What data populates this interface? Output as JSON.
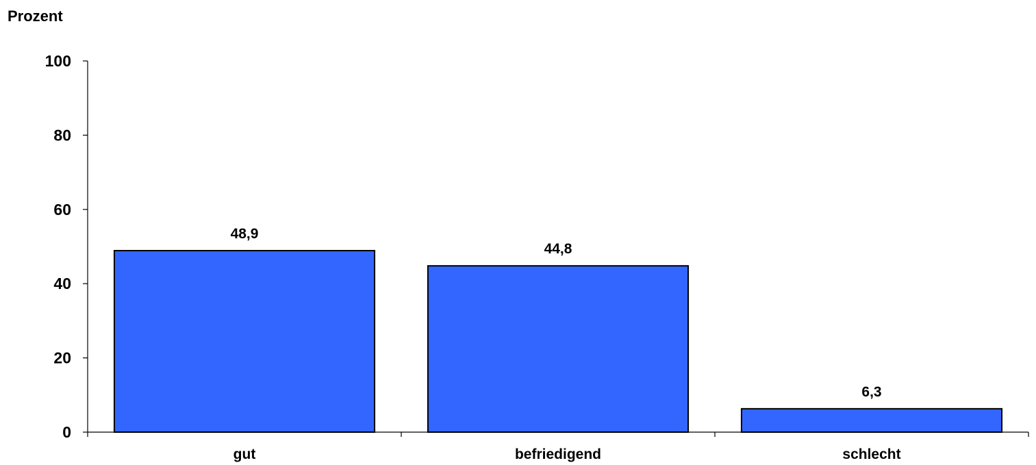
{
  "chart_data": {
    "type": "bar",
    "title": "",
    "xlabel": "",
    "ylabel": "Prozent",
    "categories": [
      "gut",
      "befriedigend",
      "schlecht"
    ],
    "values": [
      48.9,
      44.8,
      6.3
    ],
    "value_labels": [
      "48,9",
      "44,8",
      "6,3"
    ],
    "ylim": [
      0,
      100
    ],
    "yticks": [
      0,
      20,
      40,
      60,
      80,
      100
    ],
    "ytick_labels": [
      "0",
      "20",
      "40",
      "60",
      "80",
      "100"
    ],
    "grid": false,
    "legend": "none",
    "bar_color": "#3366ff",
    "bar_edge_color": "#000000"
  }
}
